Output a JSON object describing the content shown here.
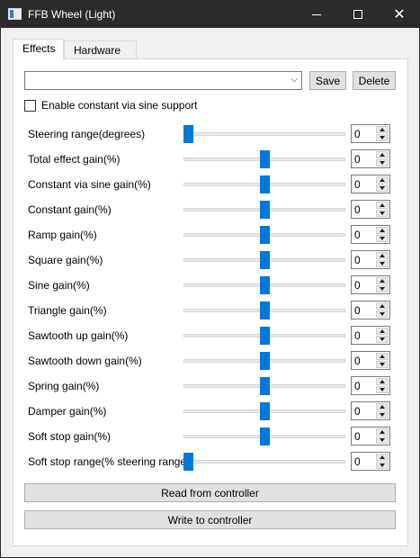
{
  "window": {
    "title": "FFB Wheel (Light)",
    "icons": {
      "app": "app-icon",
      "minimize": "minimize-icon",
      "maximize": "maximize-icon",
      "close": "close-icon"
    }
  },
  "tabs": [
    {
      "label": "Effects",
      "active": true
    },
    {
      "label": "Hardware",
      "active": false
    }
  ],
  "preset": {
    "combo_value": "",
    "save_label": "Save",
    "delete_label": "Delete"
  },
  "options": {
    "sine_support_label": "Enable constant via sine support",
    "sine_support_checked": false
  },
  "settings": [
    {
      "label": "Steering range(degrees)",
      "value": "0",
      "slider_level": 0.0
    },
    {
      "label": "Total effect gain(%)",
      "value": "0",
      "slider_level": 0.5
    },
    {
      "label": "Constant via sine gain(%)",
      "value": "0",
      "slider_level": 0.5
    },
    {
      "label": "Constant gain(%)",
      "value": "0",
      "slider_level": 0.5
    },
    {
      "label": "Ramp gain(%)",
      "value": "0",
      "slider_level": 0.5
    },
    {
      "label": "Square gain(%)",
      "value": "0",
      "slider_level": 0.5
    },
    {
      "label": "Sine gain(%)",
      "value": "0",
      "slider_level": 0.5
    },
    {
      "label": "Triangle gain(%)",
      "value": "0",
      "slider_level": 0.5
    },
    {
      "label": "Sawtooth up gain(%)",
      "value": "0",
      "slider_level": 0.5
    },
    {
      "label": "Sawtooth down gain(%)",
      "value": "0",
      "slider_level": 0.5
    },
    {
      "label": "Spring gain(%)",
      "value": "0",
      "slider_level": 0.5
    },
    {
      "label": "Damper gain(%)",
      "value": "0",
      "slider_level": 0.5
    },
    {
      "label": "Soft stop gain(%)",
      "value": "0",
      "slider_level": 0.5
    },
    {
      "label": "Soft stop range(% steering range)",
      "value": "0",
      "slider_level": 0.0
    }
  ],
  "actions": {
    "read_label": "Read from controller",
    "write_label": "Write to controller"
  },
  "colors": {
    "accent": "#0078d7",
    "titlebar": "#2b2b2b",
    "window_bg": "#f0f0f0"
  }
}
